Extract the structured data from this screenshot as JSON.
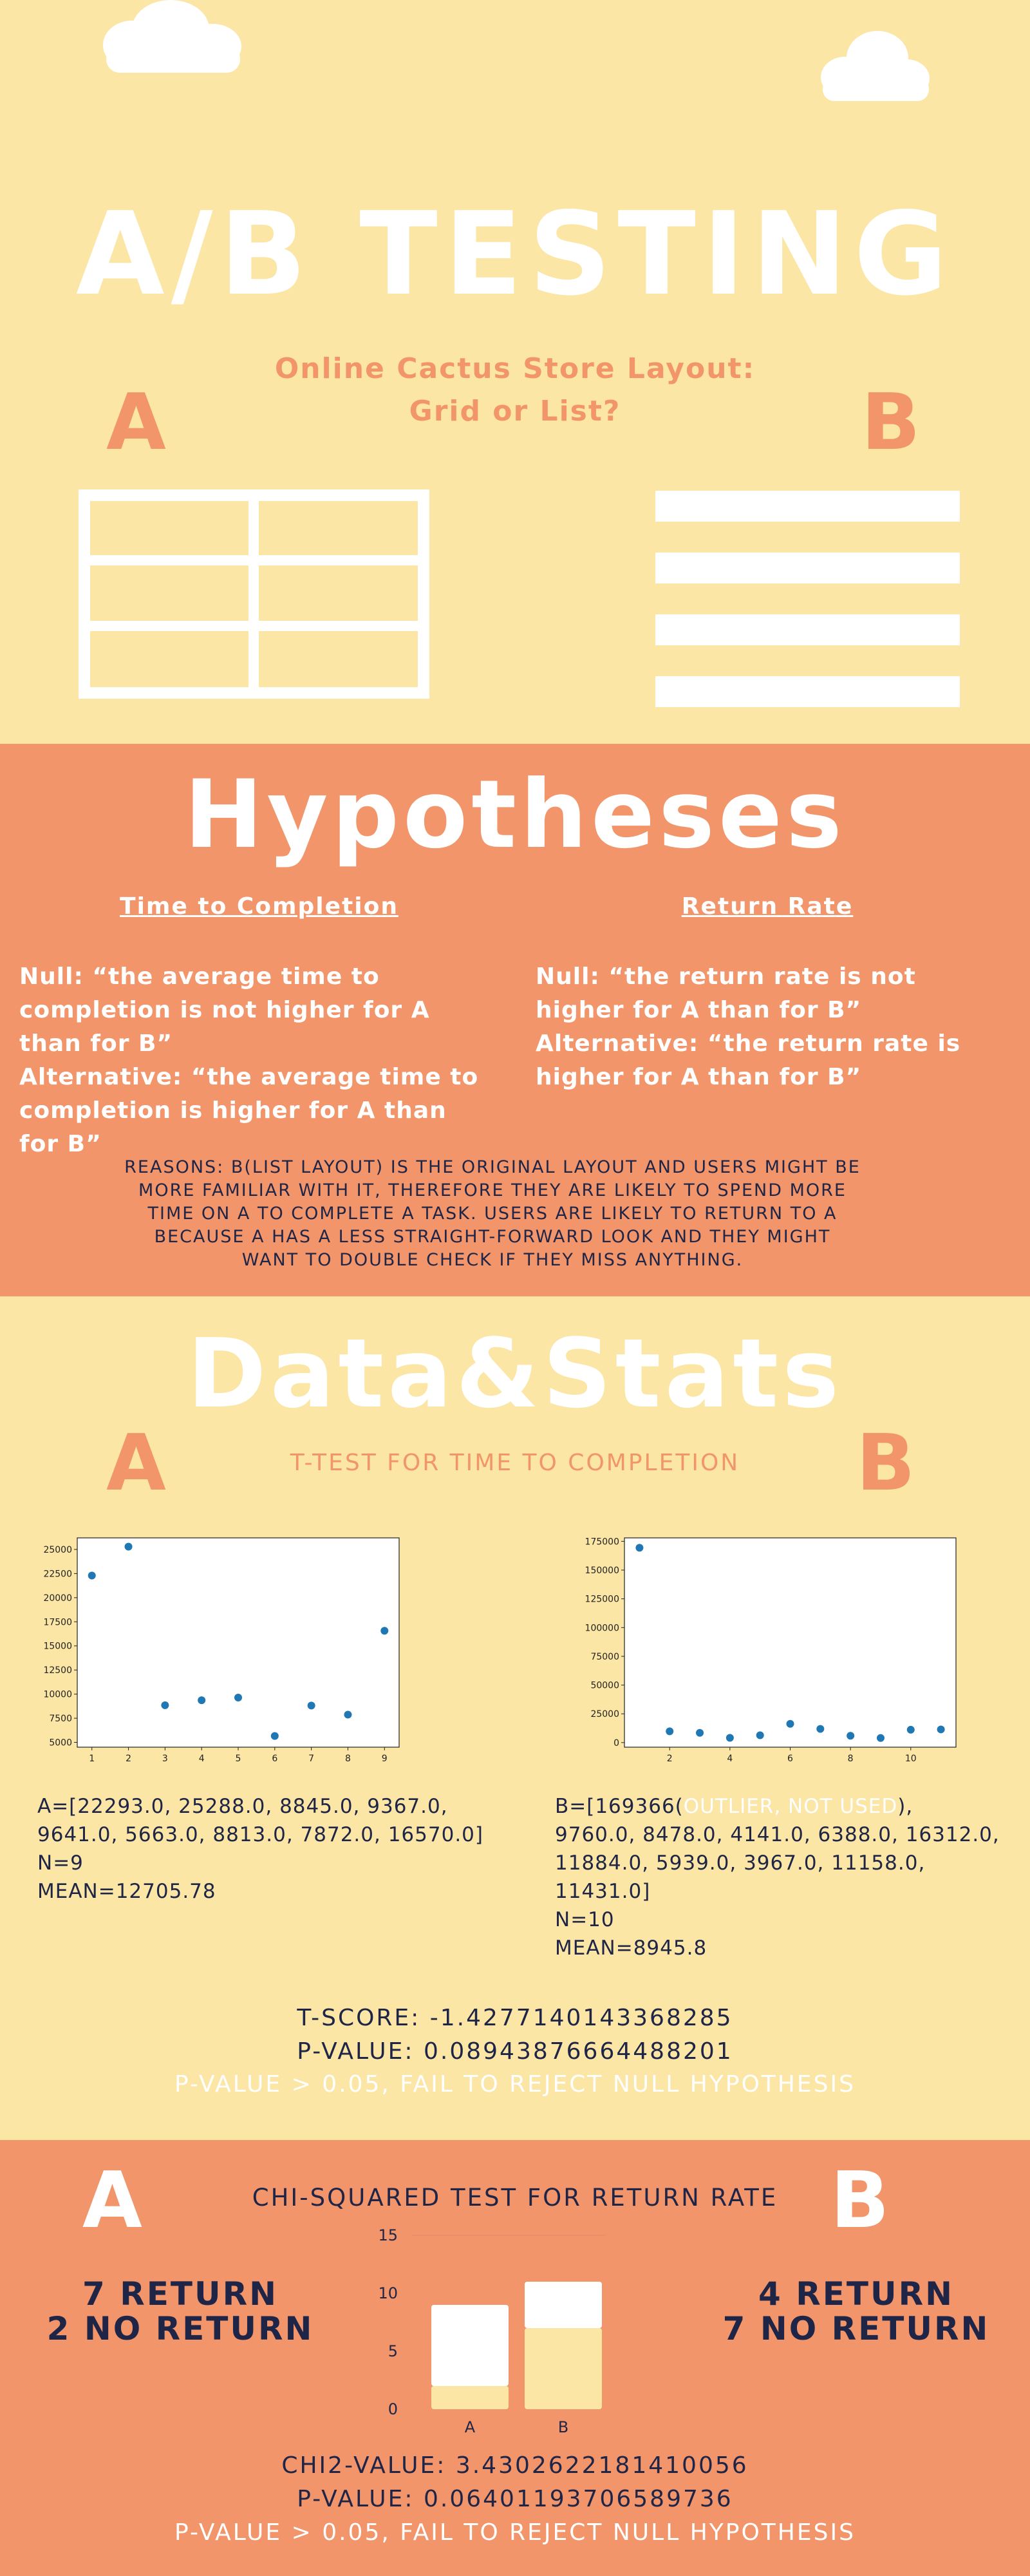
{
  "header": {
    "title": "A/B TESTING",
    "subtitle_line1": "Online Cactus Store Layout:",
    "subtitle_line2": "Grid or List?",
    "letter_a": "A",
    "letter_b": "B"
  },
  "hypotheses": {
    "title": "Hypotheses",
    "left": {
      "heading": "Time to Completion",
      "lines": [
        "Null: “the average time to",
        "completion is not higher for  A",
        "than for B”",
        "Alternative: “the average time to",
        "completion is higher for A than",
        "for B”"
      ]
    },
    "right": {
      "heading": "Return Rate",
      "lines": [
        "Null: “the return rate is not",
        "higher for A than for B”",
        "Alternative: “the return rate is",
        "higher for A than for B”"
      ]
    },
    "reasons": [
      "REASONS: B(LIST LAYOUT) IS THE ORIGINAL LAYOUT AND USERS MIGHT BE",
      "MORE FAMILIAR WITH IT, THEREFORE THEY ARE LIKELY TO SPEND MORE",
      "TIME ON A TO COMPLETE A TASK. USERS ARE LIKELY TO RETURN TO A",
      "BECAUSE A HAS A LESS STRAIGHT-FORWARD LOOK AND THEY MIGHT",
      "WANT TO DOUBLE CHECK IF THEY MISS ANYTHING."
    ]
  },
  "data_stats": {
    "title": "Data&Stats",
    "letter_a": "A",
    "letter_b": "B",
    "ttest_heading": "T-TEST FOR TIME TO COMPLETION",
    "a_text": {
      "line1": "A=[22293.0, 25288.0, 8845.0, 9367.0,",
      "line2": "9641.0, 5663.0, 8813.0, 7872.0, 16570.0]",
      "line3": "N=9",
      "line4": "MEAN=12705.78"
    },
    "b_text": {
      "prefix": "B=[169366(",
      "outlier": "OUTLIER, NOT USED",
      "suffix": "),",
      "line2": "9760.0, 8478.0, 4141.0, 6388.0, 16312.0,",
      "line3": "11884.0, 5939.0, 3967.0, 11158.0,",
      "line4": "11431.0]",
      "line5": "N=10",
      "line6": "MEAN=8945.8"
    },
    "t_score": "T-SCORE: -1.4277140143368285",
    "p_value": "P-VALUE: 0.08943876664488201",
    "conclusion": "P-VALUE > 0.05, FAIL TO REJECT NULL HYPOTHESIS"
  },
  "chi": {
    "letter_a": "A",
    "letter_b": "B",
    "heading": "CHI-SQUARED TEST FOR RETURN RATE",
    "a_line1": "7 RETURN",
    "a_line2": "2 NO RETURN",
    "b_line1": "4 RETURN",
    "b_line2": "7 NO RETURN",
    "chi2": "CHI2-VALUE: 3.4302622181410056",
    "p_value": "P-VALUE: 0.06401193706589736",
    "conclusion": "P-VALUE > 0.05, FAIL TO REJECT NULL HYPOTHESIS"
  },
  "colors": {
    "cream": "#fbe6a5",
    "salmon": "#f2956a",
    "navy": "#1f2547",
    "white": "#ffffff",
    "point_blue": "#1f77b4"
  },
  "chart_data": [
    {
      "type": "scatter",
      "title": "",
      "xlabel": "",
      "ylabel": "",
      "x": [
        1,
        2,
        3,
        4,
        5,
        6,
        7,
        8,
        9
      ],
      "y": [
        22293.0,
        25288.0,
        8845.0,
        9367.0,
        9641.0,
        5663.0,
        8813.0,
        7872.0,
        16570.0
      ],
      "xticks": [
        "1",
        "2",
        "3",
        "4",
        "5",
        "6",
        "7",
        "8",
        "9"
      ],
      "yticks": [
        "5000",
        "7500",
        "10000",
        "12500",
        "15000",
        "17500",
        "20000",
        "22500",
        "25000"
      ],
      "xlim": [
        0.6,
        9.4
      ],
      "ylim": [
        4500,
        26200
      ],
      "grid": false
    },
    {
      "type": "scatter",
      "title": "",
      "xlabel": "",
      "ylabel": "",
      "x": [
        1,
        2,
        3,
        4,
        5,
        6,
        7,
        8,
        9,
        10,
        11
      ],
      "y": [
        169366.0,
        9760.0,
        8478.0,
        4141.0,
        6388.0,
        16312.0,
        11884.0,
        5939.0,
        3967.0,
        11158.0,
        11431.0
      ],
      "xticks": [
        "2",
        "4",
        "6",
        "8",
        "10"
      ],
      "yticks": [
        "0",
        "25000",
        "50000",
        "75000",
        "100000",
        "125000",
        "150000",
        "175000"
      ],
      "xlim": [
        0.5,
        11.5
      ],
      "ylim": [
        -4000,
        178000
      ],
      "grid": false
    },
    {
      "type": "bar",
      "stacked": true,
      "categories": [
        "A",
        "B"
      ],
      "series": [
        {
          "values": [
            2,
            7
          ],
          "color": "#fbe6a5"
        },
        {
          "values": [
            7,
            4
          ],
          "color": "#ffffff"
        }
      ],
      "yticks": [
        "0",
        "5",
        "10",
        "15"
      ],
      "ylim": [
        0,
        15
      ],
      "grid": false
    }
  ]
}
